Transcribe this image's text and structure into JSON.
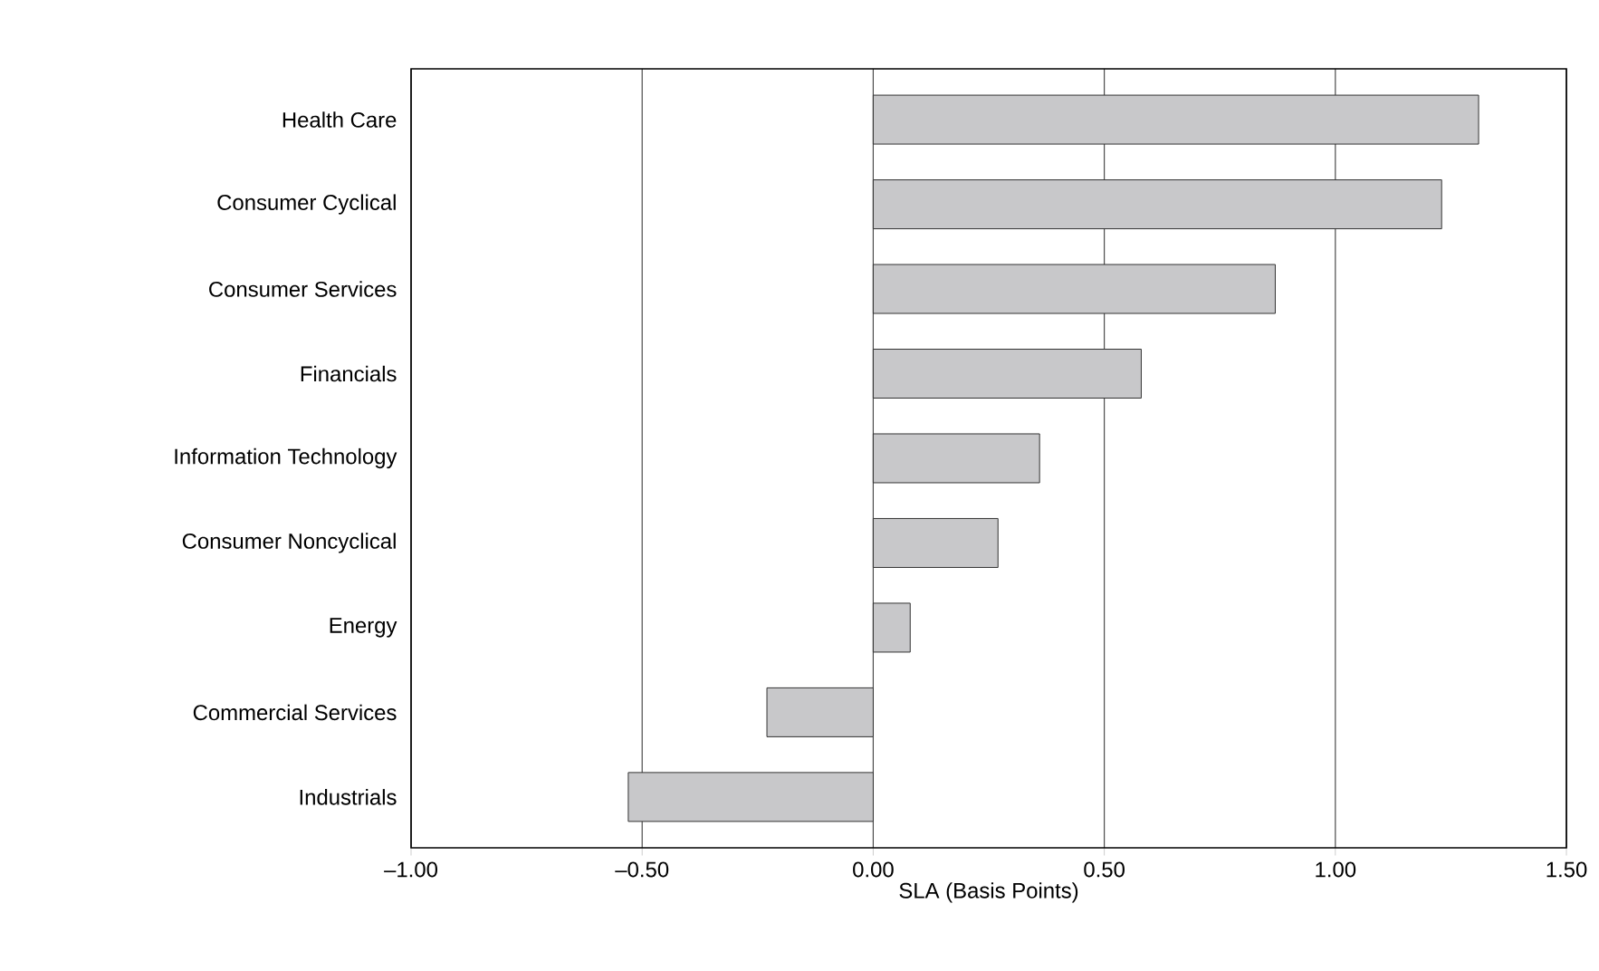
{
  "chart_data": {
    "type": "bar",
    "orientation": "horizontal",
    "xlabel": "SLA (Basis Points)",
    "categories": [
      "Health Care",
      "Consumer Cyclical",
      "Consumer Services",
      "Financials",
      "Information Technology",
      "Consumer Noncyclical",
      "Energy",
      "Commercial Services",
      "Industrials"
    ],
    "values": [
      1.31,
      1.23,
      0.87,
      0.58,
      0.36,
      0.27,
      0.08,
      -0.23,
      -0.53
    ],
    "color": "#c8c8ca",
    "xlim": [
      -1.0,
      1.5
    ],
    "xticks": [
      {
        "value": -1.0,
        "label": "–1.00"
      },
      {
        "value": -0.5,
        "label": "–0.50"
      },
      {
        "value": 0.0,
        "label": "0.00"
      },
      {
        "value": 0.5,
        "label": "0.50"
      },
      {
        "value": 1.0,
        "label": "1.00"
      },
      {
        "value": 1.5,
        "label": "1.50"
      }
    ],
    "grid": "x"
  }
}
